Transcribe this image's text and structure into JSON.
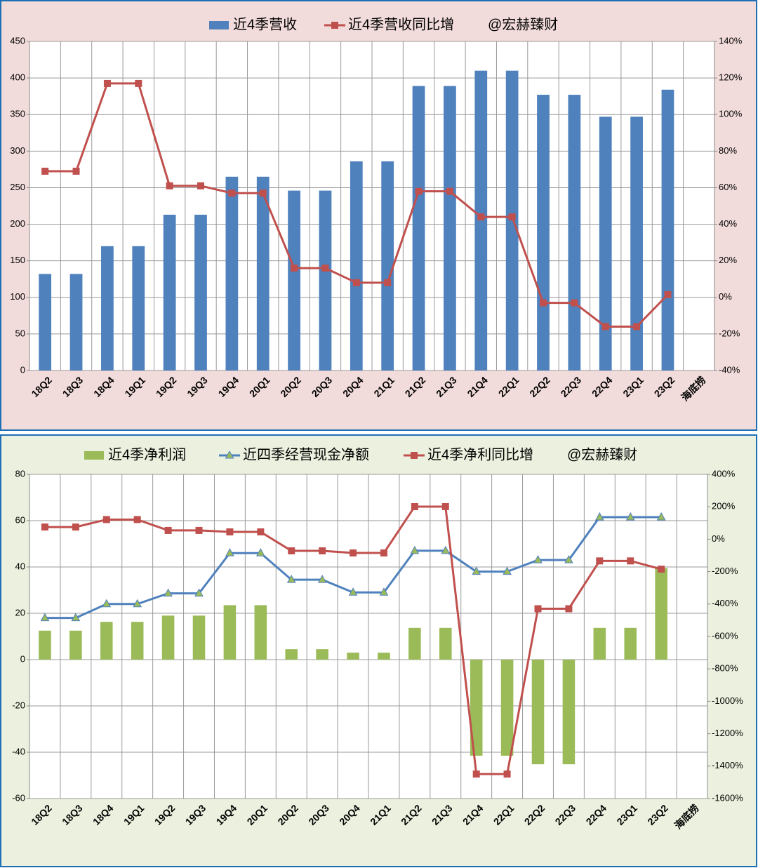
{
  "chart_data": [
    {
      "type": "combo",
      "categories": [
        "18Q2",
        "18Q3",
        "18Q4",
        "19Q1",
        "19Q2",
        "19Q3",
        "19Q4",
        "20Q1",
        "20Q2",
        "20Q3",
        "20Q4",
        "21Q1",
        "21Q2",
        "21Q3",
        "21Q4",
        "22Q1",
        "22Q2",
        "22Q3",
        "22Q4",
        "23Q1",
        "23Q2",
        "海底捞"
      ],
      "series": [
        {
          "name": "近4季营收",
          "type": "bar",
          "color": "#4f81bd",
          "values": [
            132,
            132,
            170,
            170,
            213,
            213,
            265,
            265,
            246,
            246,
            286,
            286,
            389,
            389,
            410,
            410,
            377,
            377,
            347,
            347,
            384,
            null
          ]
        },
        {
          "name": "近4季营收同比增",
          "type": "line",
          "axis": "y2",
          "color": "#c0504d",
          "marker": "square",
          "marker_color": "#c0504d",
          "values": [
            69,
            69,
            117,
            117,
            61,
            61,
            57,
            57,
            16,
            16,
            8,
            8,
            58,
            58,
            44,
            44,
            -3,
            -3,
            -16,
            -16,
            1.5,
            null
          ]
        }
      ],
      "watermark": "@宏赫臻财",
      "ylim": [
        0,
        450
      ],
      "yticks": [
        0,
        50,
        100,
        150,
        200,
        250,
        300,
        350,
        400,
        450
      ],
      "y2lim": [
        -40,
        140
      ],
      "y2ticks": [
        {
          "value": -40,
          "label": "-40%"
        },
        {
          "value": -20,
          "label": "-20%"
        },
        {
          "value": 0,
          "label": "0%"
        },
        {
          "value": 20,
          "label": "20%"
        },
        {
          "value": 40,
          "label": "40%"
        },
        {
          "value": 60,
          "label": "60%"
        },
        {
          "value": 80,
          "label": "80%"
        },
        {
          "value": 100,
          "label": "100%"
        },
        {
          "value": 120,
          "label": "120%"
        },
        {
          "value": 140,
          "label": "140%"
        }
      ],
      "grid": true,
      "background": "#f2dcdb"
    },
    {
      "type": "combo",
      "categories": [
        "18Q2",
        "18Q3",
        "18Q4",
        "19Q1",
        "19Q2",
        "19Q3",
        "19Q4",
        "20Q1",
        "20Q2",
        "20Q3",
        "20Q4",
        "21Q1",
        "21Q2",
        "21Q3",
        "21Q4",
        "22Q1",
        "22Q2",
        "22Q3",
        "22Q4",
        "23Q1",
        "23Q2",
        "海底捞"
      ],
      "series": [
        {
          "name": "近4季净利润",
          "type": "bar",
          "color": "#9bbb59",
          "values": [
            12.5,
            12.5,
            16.3,
            16.3,
            19,
            19,
            23.5,
            23.5,
            4.5,
            4.5,
            3,
            3,
            13.7,
            13.7,
            -41.5,
            -41.5,
            -45.2,
            -45.2,
            13.7,
            13.7,
            39.5,
            null
          ]
        },
        {
          "name": "近四季经营现金净额",
          "type": "line",
          "color": "#4f81bd",
          "marker": "triangle",
          "marker_color": "#9bbb59",
          "values": [
            18,
            18,
            24,
            24,
            28.6,
            28.6,
            46,
            46,
            34.5,
            34.5,
            29,
            29,
            47,
            47,
            38,
            38,
            43,
            43,
            61.5,
            61.5,
            61.5,
            null
          ]
        },
        {
          "name": "近4季净利同比增",
          "type": "line",
          "axis": "y2",
          "color": "#c0504d",
          "marker": "square",
          "marker_color": "#c0504d",
          "values": [
            75,
            75,
            121,
            121,
            54,
            54,
            45,
            45,
            -72,
            -72,
            -85,
            -85,
            201,
            201,
            -1449,
            -1449,
            -429,
            -429,
            -134,
            -134,
            -185,
            null
          ]
        }
      ],
      "watermark": "@宏赫臻财",
      "ylim": [
        -60,
        80
      ],
      "yticks": [
        -60,
        -40,
        -20,
        0,
        20,
        40,
        60,
        80
      ],
      "negative_tick_color": "#ff0000",
      "y2lim": [
        -1600,
        400
      ],
      "y2ticks": [
        {
          "value": -1600,
          "label": "-1600%"
        },
        {
          "value": -1400,
          "label": "-1400%"
        },
        {
          "value": -1200,
          "label": "-1200%"
        },
        {
          "value": -1000,
          "label": "-1000%"
        },
        {
          "value": -800,
          "label": "-800%"
        },
        {
          "value": -600,
          "label": "-600%"
        },
        {
          "value": -400,
          "label": "-400%"
        },
        {
          "value": -200,
          "label": "-200%"
        },
        {
          "value": 0,
          "label": "0%"
        },
        {
          "value": 200,
          "label": "200%"
        },
        {
          "value": 400,
          "label": "400%"
        }
      ],
      "grid": true,
      "background": "#ebf1de"
    }
  ]
}
